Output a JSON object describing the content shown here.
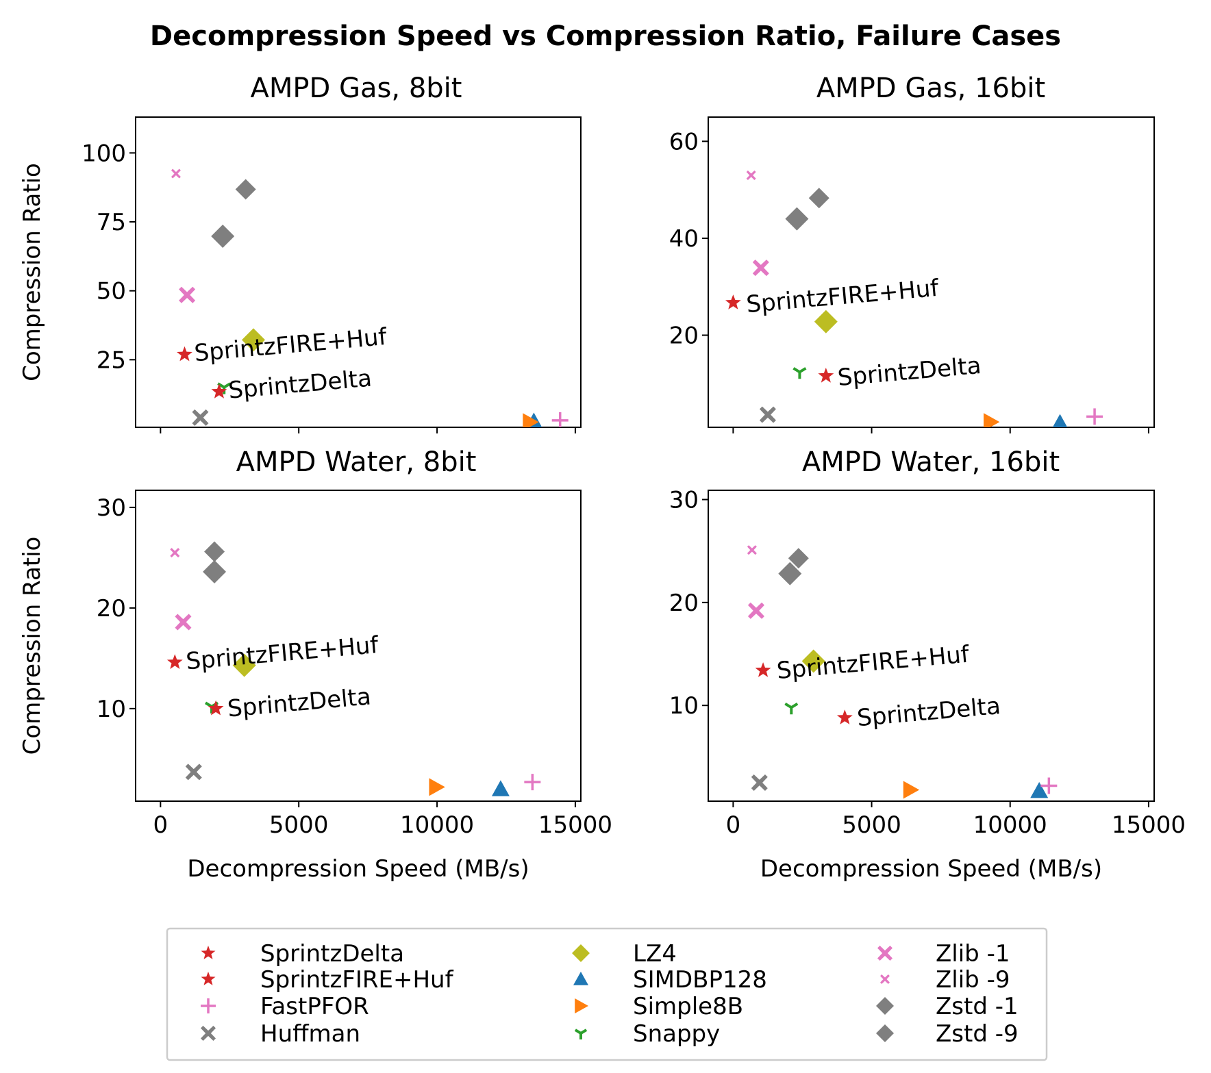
{
  "title": "Decompression Speed vs Compression Ratio, Failure Cases",
  "colors": {
    "SprintzDelta": "#d62728",
    "SprintzFIRE+Huf": "#d62728",
    "FastPFOR": "#e377c2",
    "Huffman": "#7f7f7f",
    "LZ4": "#bcbd22",
    "SIMDBP128": "#1f77b4",
    "Simple8B": "#ff7f0e",
    "Snappy": "#2ca02c",
    "Zlib -1": "#e377c2",
    "Zlib -9": "#e377c2",
    "Zstd -1": "#7f7f7f",
    "Zstd -9": "#7f7f7f"
  },
  "chart_data": [
    {
      "type": "scatter",
      "title": "AMPD Gas, 8bit",
      "xlabel": "",
      "ylabel": "Compression Ratio",
      "xlim": [
        -900,
        15200
      ],
      "ylim": [
        0.5,
        113
      ],
      "xticks": [
        0,
        5000,
        10000,
        15000
      ],
      "xtick_labels": [],
      "yticks": [
        25,
        50,
        75,
        100
      ],
      "ytick_labels": [
        "25",
        "50",
        "75",
        "100"
      ],
      "points": [
        {
          "name": "Zlib -9",
          "x": 560,
          "y": 92.5
        },
        {
          "name": "Zstd -9",
          "x": 3080,
          "y": 86.8
        },
        {
          "name": "Zstd -1",
          "x": 2250,
          "y": 69.8
        },
        {
          "name": "Zlib -1",
          "x": 960,
          "y": 48.5
        },
        {
          "name": "LZ4",
          "x": 3360,
          "y": 32.2
        },
        {
          "name": "SprintzFIRE+Huf",
          "x": 870,
          "y": 26.9
        },
        {
          "name": "Snappy",
          "x": 2300,
          "y": 15.0
        },
        {
          "name": "SprintzDelta",
          "x": 2120,
          "y": 13.4
        },
        {
          "name": "Huffman",
          "x": 1440,
          "y": 4.0
        },
        {
          "name": "SIMDBP128",
          "x": 13500,
          "y": 2.6
        },
        {
          "name": "Simple8B",
          "x": 13360,
          "y": 2.4
        },
        {
          "name": "FastPFOR",
          "x": 14450,
          "y": 3.0
        }
      ],
      "annotations": [
        {
          "text": "SprintzFIRE+Huf",
          "x": 1250,
          "y": 24.5
        },
        {
          "text": "SprintzDelta",
          "x": 2480,
          "y": 11.0
        }
      ]
    },
    {
      "type": "scatter",
      "title": "AMPD Gas, 16bit",
      "xlabel": "",
      "ylabel": "",
      "xlim": [
        -900,
        15200
      ],
      "ylim": [
        1,
        65
      ],
      "xticks": [
        0,
        5000,
        10000,
        15000
      ],
      "xtick_labels": [],
      "yticks": [
        20,
        40,
        60
      ],
      "ytick_labels": [
        "20",
        "40",
        "60"
      ],
      "points": [
        {
          "name": "Zlib -9",
          "x": 650,
          "y": 53.0
        },
        {
          "name": "Zstd -9",
          "x": 3100,
          "y": 48.3
        },
        {
          "name": "Zstd -1",
          "x": 2300,
          "y": 44.0
        },
        {
          "name": "Zlib -1",
          "x": 1000,
          "y": 33.9
        },
        {
          "name": "SprintzFIRE+Huf",
          "x": 0,
          "y": 26.7
        },
        {
          "name": "LZ4",
          "x": 3350,
          "y": 22.8
        },
        {
          "name": "Snappy",
          "x": 2400,
          "y": 12.4
        },
        {
          "name": "SprintzDelta",
          "x": 3350,
          "y": 11.6
        },
        {
          "name": "Huffman",
          "x": 1250,
          "y": 3.6
        },
        {
          "name": "Simple8B",
          "x": 9300,
          "y": 2.1
        },
        {
          "name": "SIMDBP128",
          "x": 11800,
          "y": 1.9
        },
        {
          "name": "FastPFOR",
          "x": 13050,
          "y": 3.2
        }
      ],
      "annotations": [
        {
          "text": "SprintzFIRE+Huf",
          "x": 500,
          "y": 24.7
        },
        {
          "text": "SprintzDelta",
          "x": 3800,
          "y": 9.6
        }
      ]
    },
    {
      "type": "scatter",
      "title": "AMPD Water, 8bit",
      "xlabel": "Decompression Speed (MB/s)",
      "ylabel": "Compression Ratio",
      "xlim": [
        -900,
        15200
      ],
      "ylim": [
        0.8,
        31.7
      ],
      "xticks": [
        0,
        5000,
        10000,
        15000
      ],
      "xtick_labels": [
        "0",
        "5000",
        "10000",
        "15000"
      ],
      "yticks": [
        10,
        20,
        30
      ],
      "ytick_labels": [
        "10",
        "20",
        "30"
      ],
      "points": [
        {
          "name": "Zlib -9",
          "x": 520,
          "y": 25.5
        },
        {
          "name": "Zstd -9",
          "x": 1950,
          "y": 25.6
        },
        {
          "name": "Zstd -1",
          "x": 1950,
          "y": 23.6
        },
        {
          "name": "Zlib -1",
          "x": 820,
          "y": 18.6
        },
        {
          "name": "SprintzFIRE+Huf",
          "x": 520,
          "y": 14.6
        },
        {
          "name": "LZ4",
          "x": 3030,
          "y": 14.3
        },
        {
          "name": "Snappy",
          "x": 1850,
          "y": 10.2
        },
        {
          "name": "SprintzDelta",
          "x": 2000,
          "y": 10.0
        },
        {
          "name": "Huffman",
          "x": 1200,
          "y": 3.7
        },
        {
          "name": "Simple8B",
          "x": 9970,
          "y": 2.2
        },
        {
          "name": "SIMDBP128",
          "x": 12300,
          "y": 2.0
        },
        {
          "name": "FastPFOR",
          "x": 13450,
          "y": 2.7
        }
      ],
      "annotations": [
        {
          "text": "SprintzFIRE+Huf",
          "x": 950,
          "y": 13.9
        },
        {
          "text": "SprintzDelta",
          "x": 2450,
          "y": 9.2
        }
      ]
    },
    {
      "type": "scatter",
      "title": "AMPD Water, 16bit",
      "xlabel": "Decompression Speed (MB/s)",
      "ylabel": "",
      "xlim": [
        -900,
        15200
      ],
      "ylim": [
        0.7,
        30.9
      ],
      "xticks": [
        0,
        5000,
        10000,
        15000
      ],
      "xtick_labels": [
        "0",
        "5000",
        "10000",
        "15000"
      ],
      "yticks": [
        10,
        20,
        30
      ],
      "ytick_labels": [
        "10",
        "20",
        "30"
      ],
      "points": [
        {
          "name": "Zlib -9",
          "x": 680,
          "y": 25.1
        },
        {
          "name": "Zstd -9",
          "x": 2360,
          "y": 24.3
        },
        {
          "name": "Zstd -1",
          "x": 2050,
          "y": 22.8
        },
        {
          "name": "Zlib -1",
          "x": 830,
          "y": 19.2
        },
        {
          "name": "LZ4",
          "x": 2900,
          "y": 14.3
        },
        {
          "name": "SprintzFIRE+Huf",
          "x": 1080,
          "y": 13.4
        },
        {
          "name": "Snappy",
          "x": 2100,
          "y": 9.8
        },
        {
          "name": "SprintzDelta",
          "x": 4030,
          "y": 8.8
        },
        {
          "name": "Huffman",
          "x": 950,
          "y": 2.5
        },
        {
          "name": "Simple8B",
          "x": 6400,
          "y": 1.8
        },
        {
          "name": "SIMDBP128",
          "x": 11050,
          "y": 1.7
        },
        {
          "name": "FastPFOR",
          "x": 11400,
          "y": 2.2
        }
      ],
      "annotations": [
        {
          "text": "SprintzFIRE+Huf",
          "x": 1600,
          "y": 12.6
        },
        {
          "text": "SprintzDelta",
          "x": 4500,
          "y": 8.0
        }
      ]
    }
  ],
  "legend": {
    "position": "bottom-center",
    "columns": [
      [
        {
          "label": "SprintzDelta",
          "marker": "star"
        },
        {
          "label": "SprintzFIRE+Huf",
          "marker": "star"
        },
        {
          "label": "FastPFOR",
          "marker": "plus"
        },
        {
          "label": "Huffman",
          "marker": "xfilled"
        }
      ],
      [
        {
          "label": "LZ4",
          "marker": "diamond"
        },
        {
          "label": "SIMDBP128",
          "marker": "triangle-up"
        },
        {
          "label": "Simple8B",
          "marker": "triangle-right"
        },
        {
          "label": "Snappy",
          "marker": "tri-down"
        }
      ],
      [
        {
          "label": "Zlib -1",
          "marker": "xfilled"
        },
        {
          "label": "Zlib -9",
          "marker": "xfilled-small"
        },
        {
          "label": "Zstd -1",
          "marker": "diamond"
        },
        {
          "label": "Zstd -9",
          "marker": "diamond"
        }
      ]
    ]
  }
}
